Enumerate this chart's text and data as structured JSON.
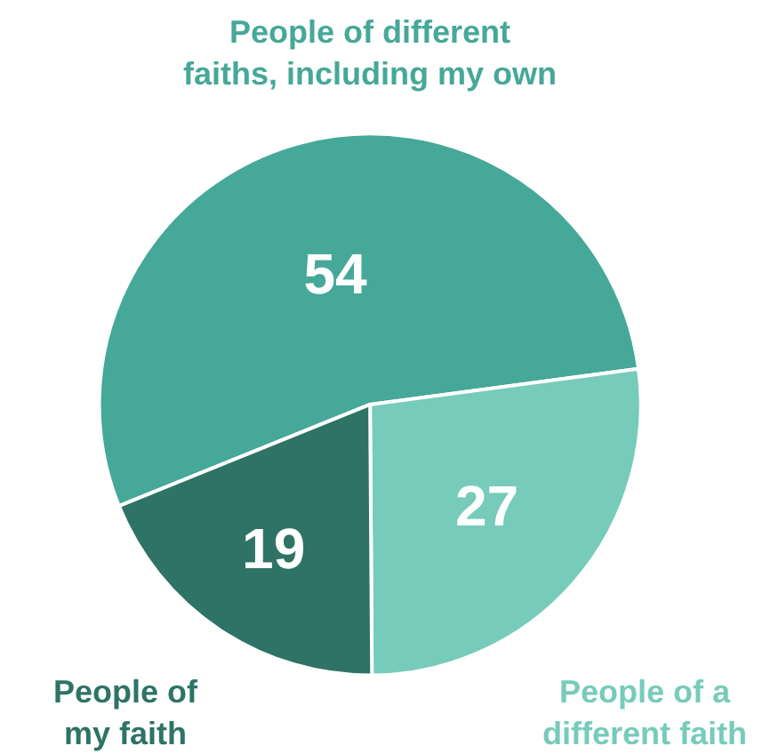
{
  "chart_data": {
    "type": "pie",
    "categories": [
      "People of different\nfaiths, including my own",
      "People of a\ndifferent faith",
      "People of\nmy faith"
    ],
    "values": [
      54,
      27,
      19
    ],
    "colors": [
      "#46a898",
      "#77cbbb",
      "#2e7366"
    ],
    "data_labels": true,
    "legend": false
  }
}
